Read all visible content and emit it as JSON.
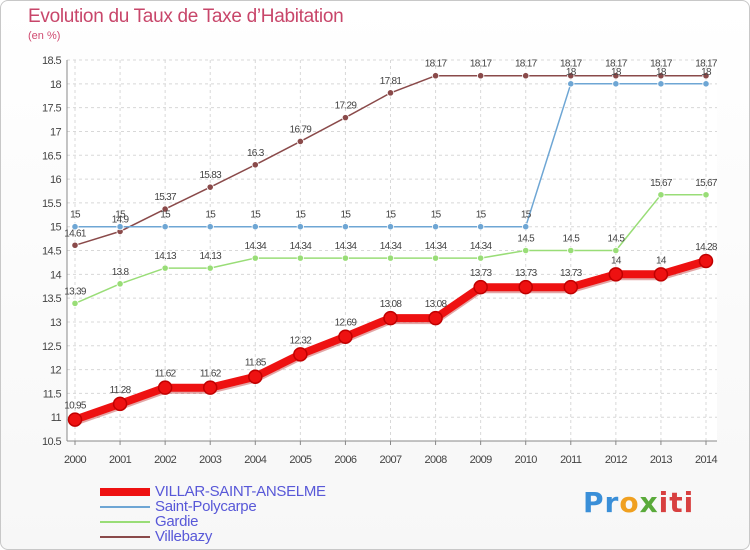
{
  "chart_data": {
    "type": "line",
    "title": "Evolution du Taux de Taxe d’Habitation",
    "subtitle": "(en %)",
    "xlabel": "",
    "ylabel": "",
    "x": [
      "2000",
      "2001",
      "2002",
      "2003",
      "2004",
      "2005",
      "2006",
      "2007",
      "2008",
      "2009",
      "2010",
      "2011",
      "2012",
      "2013",
      "2014"
    ],
    "ylim": [
      10.5,
      18.5
    ],
    "yticks": [
      "10.5",
      "11",
      "11.5",
      "12",
      "12.5",
      "13",
      "13.5",
      "14",
      "14.5",
      "15",
      "15.5",
      "16",
      "16.5",
      "17",
      "17.5",
      "18",
      "18.5"
    ],
    "grid": true,
    "legend_position": "bottom-left",
    "series": [
      {
        "name": "VILLAR-SAINT-ANSELME",
        "color": "#ee1111",
        "values": [
          10.95,
          11.28,
          11.62,
          11.62,
          11.85,
          12.32,
          12.69,
          13.08,
          13.08,
          13.73,
          13.73,
          13.73,
          14,
          14,
          14.28
        ],
        "labels": [
          "10.95",
          "11.28",
          "11.62",
          "11.62",
          "11.85",
          "12.32",
          "12.69",
          "13.08",
          "13.08",
          "13.73",
          "13.73",
          "13.73",
          "14",
          "14",
          "14.28"
        ]
      },
      {
        "name": "Saint-Polycarpe",
        "color": "#6ea6d4",
        "values": [
          15,
          15,
          15,
          15,
          15,
          15,
          15,
          15,
          15,
          15,
          15,
          18,
          18,
          18,
          18
        ],
        "labels": [
          "15",
          "15",
          "15",
          "15",
          "15",
          "15",
          "15",
          "15",
          "15",
          "15",
          "15",
          "18",
          "18",
          "18",
          "18"
        ]
      },
      {
        "name": "Gardie",
        "color": "#99dd77",
        "values": [
          13.39,
          13.8,
          14.13,
          14.13,
          14.34,
          14.34,
          14.34,
          14.34,
          14.34,
          14.34,
          14.5,
          14.5,
          14.5,
          15.67,
          15.67
        ],
        "labels": [
          "13.39",
          "13.8",
          "14.13",
          "14.13",
          "14.34",
          "14.34",
          "14.34",
          "14.34",
          "14.34",
          "14.34",
          "14.5",
          "14.5",
          "14.5",
          "15.67",
          "15.67"
        ]
      },
      {
        "name": "Villebazy",
        "color": "#8a4a4a",
        "values": [
          14.61,
          14.9,
          15.37,
          15.83,
          16.3,
          16.79,
          17.29,
          17.81,
          18.17,
          18.17,
          18.17,
          18.17,
          18.17,
          18.17,
          18.17
        ],
        "labels": [
          "14.61",
          "14.9",
          "15.37",
          "15.83",
          "16.3",
          "16.79",
          "17.29",
          "17.81",
          "18.17",
          "18.17",
          "18.17",
          "18.17",
          "18.17",
          "18.17",
          "18.17"
        ]
      }
    ]
  },
  "logo": {
    "p1": "Pr",
    "p2": "o",
    "p3": "x",
    "p4": "iti"
  }
}
